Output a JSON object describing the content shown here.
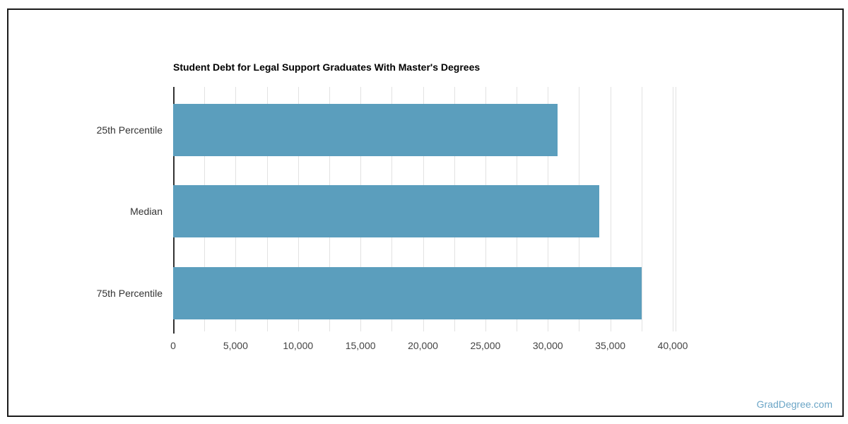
{
  "page": {
    "background": "#ffffff",
    "frame_border_color": "#1b1b1b",
    "watermark": "GradDegree.com",
    "watermark_color": "#6ba5c6"
  },
  "chart_data": {
    "type": "bar",
    "orientation": "horizontal",
    "title": "Student Debt for Legal Support Graduates With Master's Degrees",
    "categories": [
      "25th Percentile",
      "Median",
      "75th Percentile"
    ],
    "values": [
      30800,
      34100,
      37500
    ],
    "xlabel": "",
    "ylabel": "",
    "xlim": [
      0,
      40000
    ],
    "x_tick_step": 5000,
    "x_tick_labels": [
      "0",
      "5,000",
      "10,000",
      "15,000",
      "20,000",
      "25,000",
      "30,000",
      "35,000",
      "40,000"
    ],
    "gridline_step": 2500,
    "grid": true,
    "legend": "none",
    "bar_color": "#5b9ebd",
    "grid_color": "#e2e2e2",
    "axis_color": "#333333",
    "tick_label_color": "#444444",
    "category_label_color": "#333333",
    "title_color": "#000000"
  }
}
